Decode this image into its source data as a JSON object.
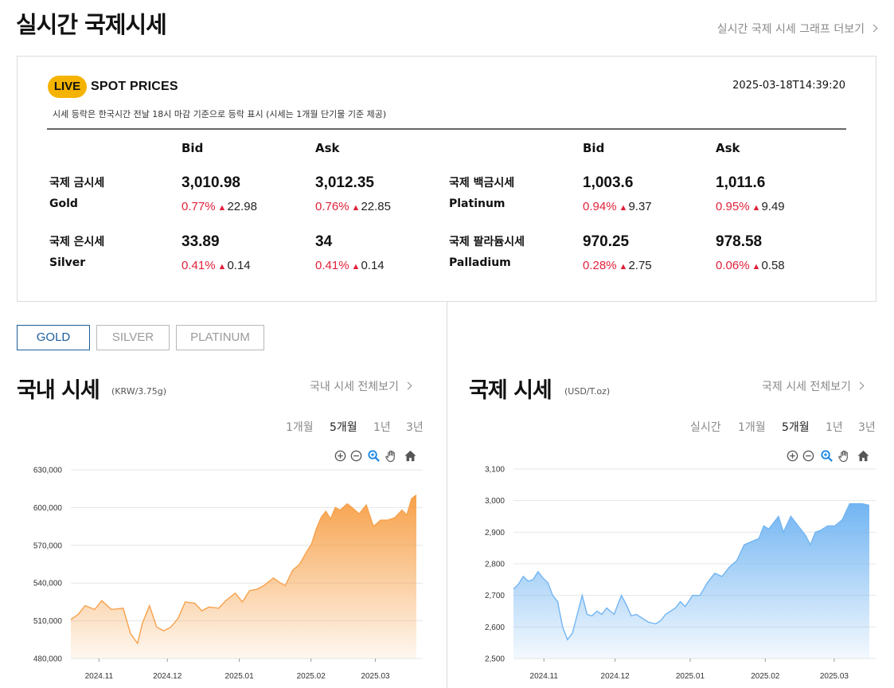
{
  "header": {
    "title": "실시간 국제시세",
    "graph_link": "실시간 국제 시세 그래프 더보기"
  },
  "spot": {
    "live_label": "LIVE",
    "title": "SPOT PRICES",
    "timestamp": "2025-03-18T14:39:20",
    "note": "시세 등락은 한국시간 전날 18시 마감 기준으로 등락 표시 (시세는 1개월 단기물 기준 제공)",
    "bid_label": "Bid",
    "ask_label": "Ask",
    "up_color": "#e0213a",
    "metals": [
      {
        "name_ko": "국제 금시세",
        "name_en": "Gold",
        "bid": "3,010.98",
        "bid_pct": "0.77%",
        "bid_chg": "22.98",
        "ask": "3,012.35",
        "ask_pct": "0.76%",
        "ask_chg": "22.85"
      },
      {
        "name_ko": "국제 은시세",
        "name_en": "Silver",
        "bid": "33.89",
        "bid_pct": "0.41%",
        "bid_chg": "0.14",
        "ask": "34",
        "ask_pct": "0.41%",
        "ask_chg": "0.14"
      },
      {
        "name_ko": "국제 백금시세",
        "name_en": "Platinum",
        "bid": "1,003.6",
        "bid_pct": "0.94%",
        "bid_chg": "9.37",
        "ask": "1,011.6",
        "ask_pct": "0.95%",
        "ask_chg": "9.49"
      },
      {
        "name_ko": "국제 팔라듐시세",
        "name_en": "Palladium",
        "bid": "970.25",
        "bid_pct": "0.28%",
        "bid_chg": "2.75",
        "ask": "978.58",
        "ask_pct": "0.06%",
        "ask_chg": "0.58"
      }
    ]
  },
  "metal_tabs": {
    "gold": "GOLD",
    "silver": "SILVER",
    "platinum": "PLATINUM",
    "active": "GOLD"
  },
  "domestic": {
    "title": "국내 시세",
    "unit": "(KRW/3.75g)",
    "link": "국내 시세 전체보기",
    "periods": [
      "1개월",
      "5개월",
      "1년",
      "3년"
    ],
    "active_period": "5개월"
  },
  "international": {
    "title": "국제 시세",
    "unit": "(USD/T.oz)",
    "link": "국제 시세 전체보기",
    "periods": [
      "실시간",
      "1개월",
      "5개월",
      "1년",
      "3년"
    ],
    "active_period": "5개월"
  },
  "chart_tools": [
    "zoom-in-icon",
    "zoom-out-icon",
    "zoom-search-icon",
    "pan-hand-icon",
    "home-icon"
  ],
  "chart_data": [
    {
      "type": "area",
      "color": "#f7a14a",
      "ylim": [
        480000,
        630000
      ],
      "yticks": [
        480000,
        510000,
        540000,
        570000,
        600000,
        630000
      ],
      "ytick_labels": [
        "480,000",
        "510,000",
        "540,000",
        "570,000",
        "600,000",
        "630,000"
      ],
      "xtick_labels": [
        "2024.11",
        "2024.12",
        "2025.01",
        "2025.02",
        "2025.03"
      ],
      "xtick_days": [
        11.8,
        40.5,
        70.7,
        100.8,
        127.8
      ],
      "x_end_day": 145,
      "series": [
        {
          "x": [
            0,
            3,
            6,
            10,
            13,
            17,
            22,
            25,
            28,
            30,
            33,
            36,
            39,
            42,
            45,
            48,
            52,
            55,
            58,
            62,
            65,
            69,
            72,
            75,
            78,
            81,
            85,
            88,
            90,
            93,
            96,
            99,
            101,
            103,
            105,
            107,
            109,
            111,
            113,
            116,
            118,
            121,
            124,
            127,
            130,
            133,
            136,
            139,
            141,
            143,
            145
          ],
          "y": [
            511000,
            515000,
            522000,
            519000,
            526000,
            519000,
            520000,
            500000,
            492000,
            508000,
            522000,
            505000,
            502000,
            505000,
            512000,
            525000,
            524000,
            518000,
            521000,
            520000,
            526000,
            532000,
            525000,
            534000,
            535000,
            538000,
            544000,
            540000,
            538000,
            550000,
            555000,
            565000,
            571000,
            583000,
            592000,
            597000,
            591000,
            600000,
            598000,
            603000,
            600000,
            595000,
            602000,
            585000,
            590000,
            590000,
            592000,
            598000,
            594000,
            607000,
            610000
          ]
        }
      ]
    },
    {
      "type": "area",
      "color": "#72b5f2",
      "ylim": [
        2500,
        3100
      ],
      "yticks": [
        2500,
        2600,
        2700,
        2800,
        2900,
        3000,
        3100
      ],
      "ytick_labels": [
        "2,500",
        "2,600",
        "2,700",
        "2,800",
        "2,900",
        "3,000",
        "3,100"
      ],
      "xtick_labels": [
        "2024.11",
        "2024.12",
        "2025.01",
        "2025.02",
        "2025.03"
      ],
      "xtick_days": [
        12.4,
        41.4,
        72.0,
        102.6,
        130.7
      ],
      "x_end_day": 145,
      "series": [
        {
          "x": [
            0,
            2,
            4,
            6,
            8,
            10,
            12,
            14,
            16,
            18,
            19,
            20,
            22,
            24,
            26,
            28,
            30,
            32,
            34,
            36,
            38,
            41,
            44,
            46,
            48,
            50,
            52,
            55,
            58,
            60,
            62,
            64,
            66,
            68,
            70,
            73,
            76,
            79,
            82,
            85,
            88,
            91,
            94,
            97,
            100,
            102,
            104,
            106,
            108,
            110,
            113,
            116,
            119,
            121,
            123,
            125,
            128,
            131,
            134,
            137,
            140,
            142,
            145
          ],
          "y": [
            2720,
            2735,
            2760,
            2745,
            2750,
            2775,
            2755,
            2740,
            2700,
            2680,
            2640,
            2600,
            2560,
            2580,
            2640,
            2700,
            2640,
            2635,
            2650,
            2640,
            2660,
            2640,
            2700,
            2670,
            2635,
            2640,
            2630,
            2615,
            2610,
            2620,
            2640,
            2650,
            2660,
            2680,
            2665,
            2700,
            2700,
            2740,
            2770,
            2760,
            2790,
            2810,
            2860,
            2870,
            2880,
            2920,
            2910,
            2930,
            2950,
            2900,
            2950,
            2920,
            2890,
            2860,
            2900,
            2905,
            2920,
            2920,
            2940,
            2990,
            2990,
            2990,
            2985
          ]
        }
      ]
    }
  ]
}
